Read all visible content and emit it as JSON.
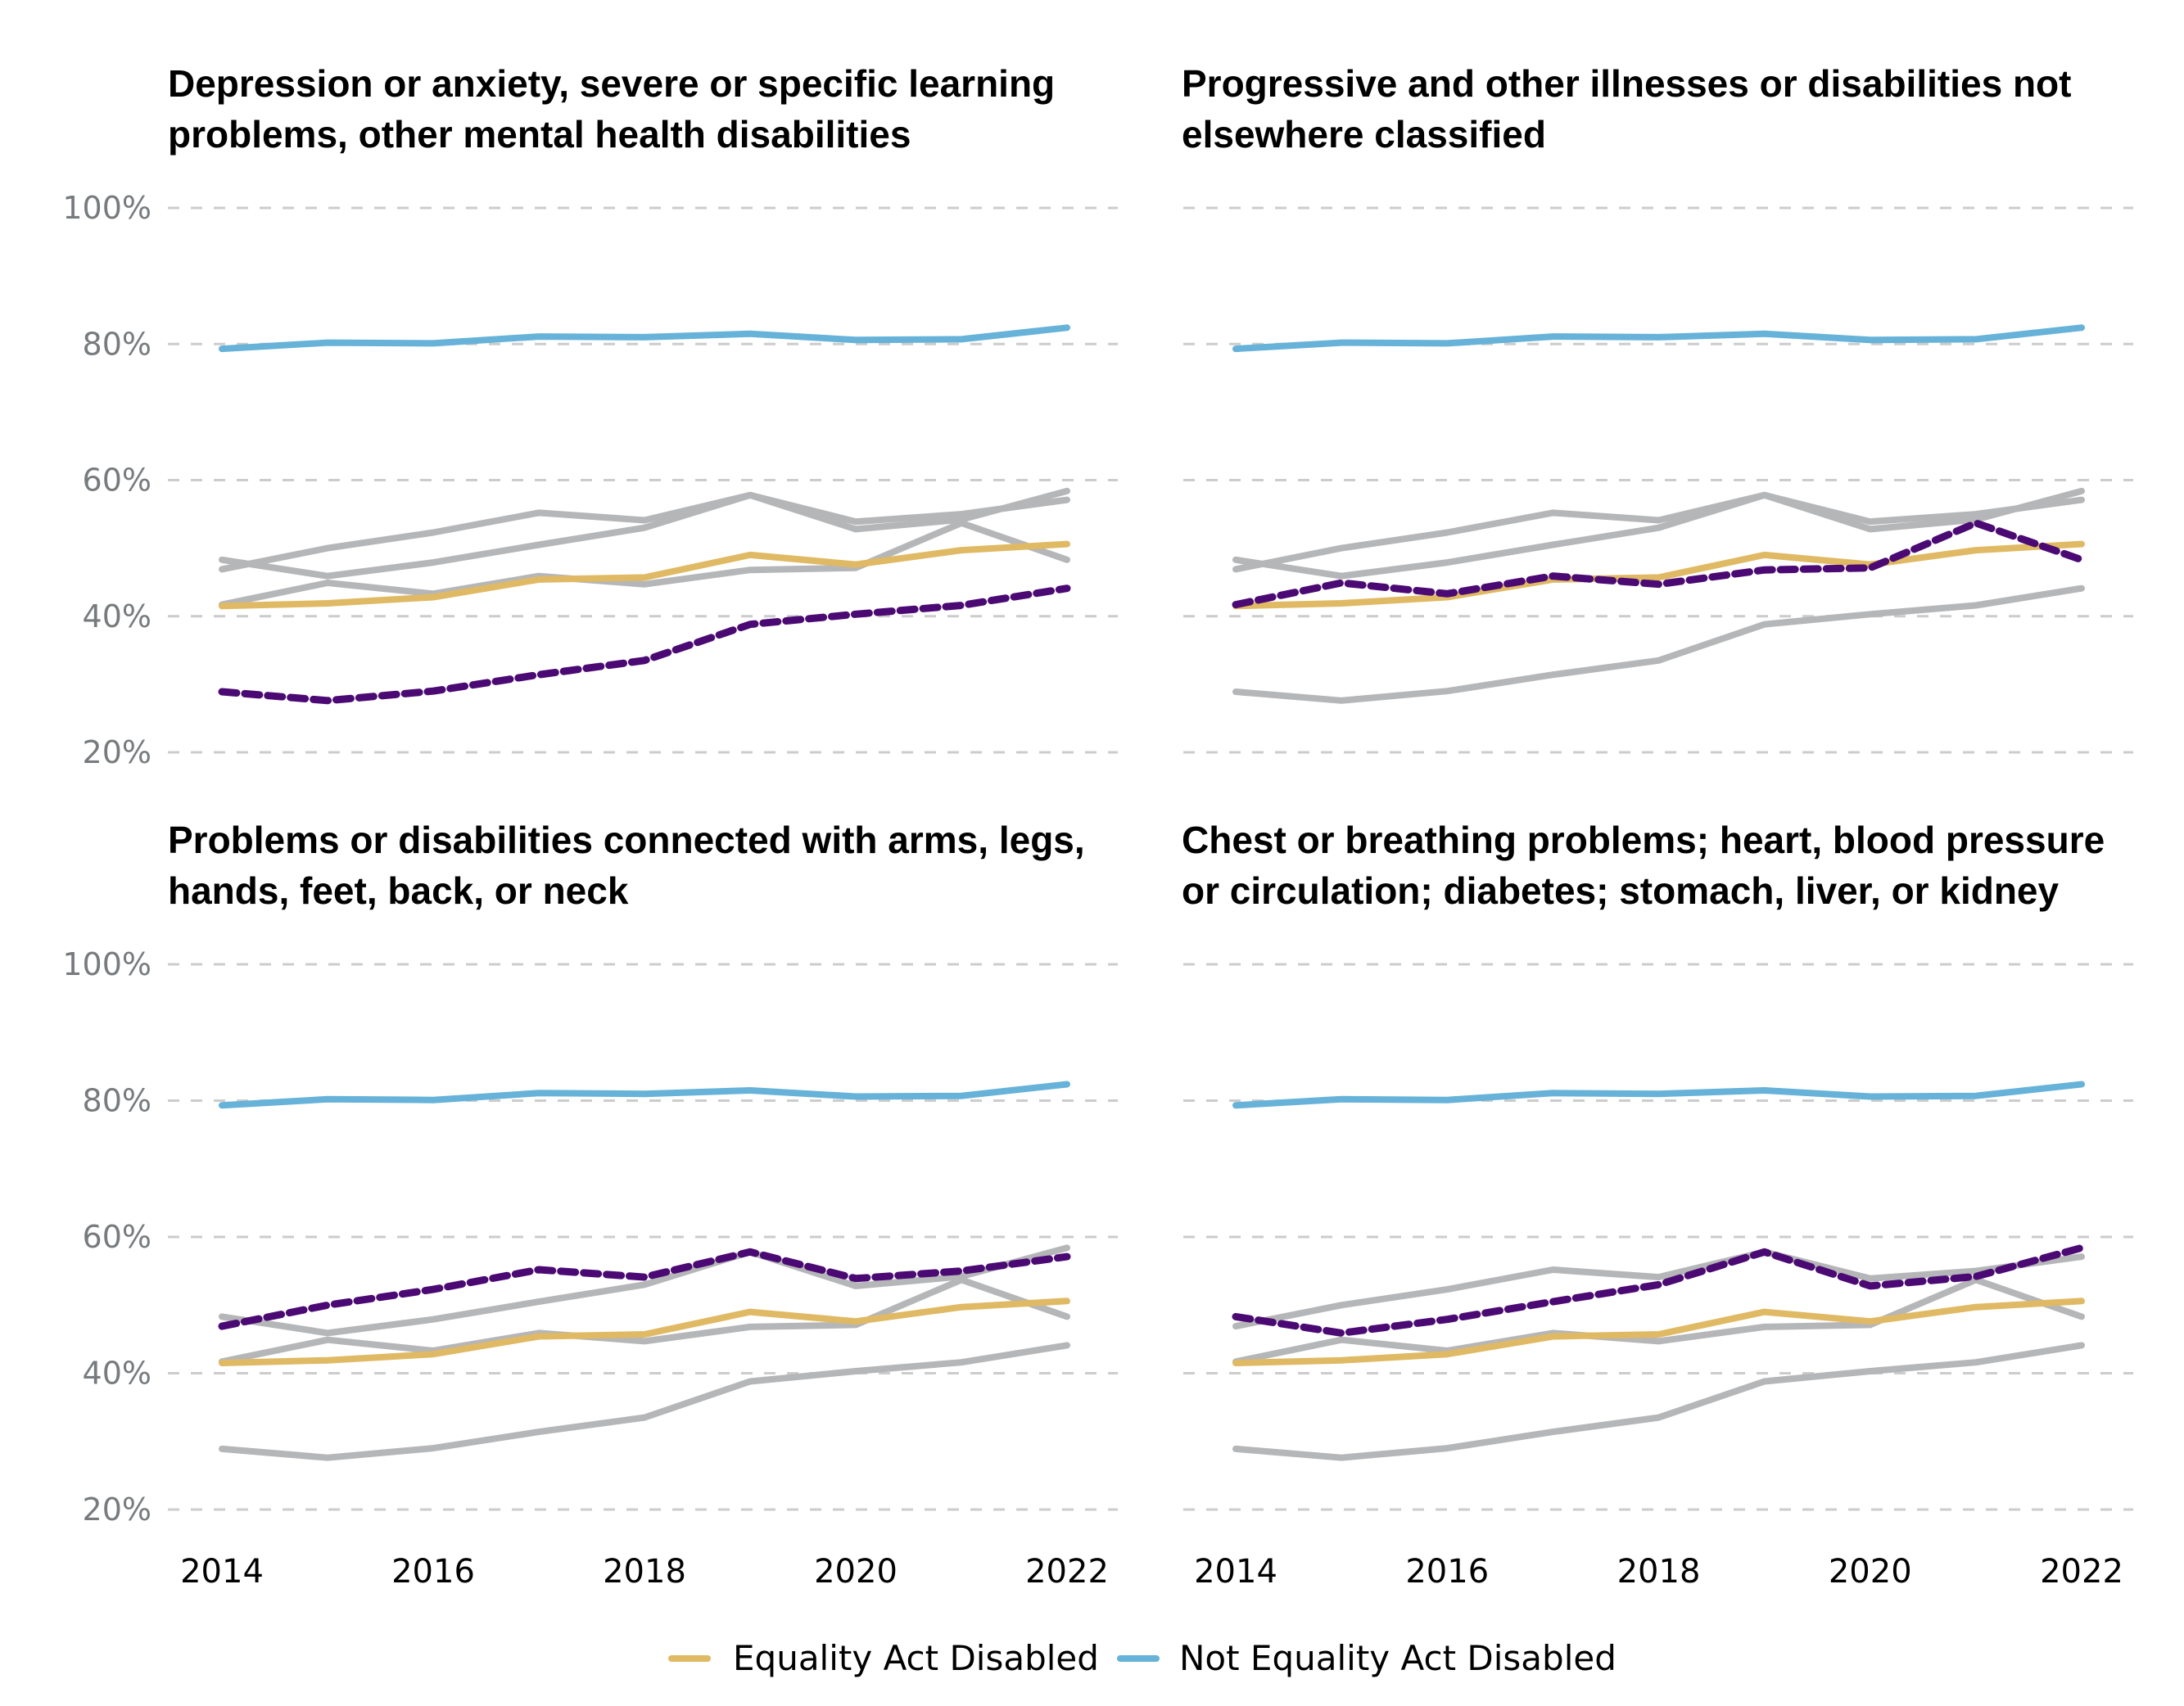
{
  "chart_data": {
    "type": "line",
    "layout": "small-multiples-2x2",
    "x": [
      2014,
      2015,
      2016,
      2017,
      2018,
      2019,
      2020,
      2021,
      2022
    ],
    "xticks": [
      "2014",
      "2016",
      "2018",
      "2020",
      "2022"
    ],
    "yticks": [
      "20%",
      "40%",
      "60%",
      "80%",
      "100%"
    ],
    "ylim": [
      20,
      100
    ],
    "grid": "horizontal dashed",
    "legend_position": "bottom-center",
    "legend": [
      {
        "name": "Equality Act Disabled",
        "color": "#e0b964"
      },
      {
        "name": "Not Equality Act Disabled",
        "color": "#67b2d8"
      }
    ],
    "colors": {
      "equality_act_disabled": "#e0b964",
      "not_equality_act_disabled": "#67b2d8",
      "highlight": "#4b0a73",
      "other_categories": "#b5b6b8",
      "gridline": "#cccccc"
    },
    "series_common": [
      {
        "name": "Not Equality Act Disabled",
        "key": "not_disabled",
        "values": [
          79.3,
          80.2,
          80.1,
          81.1,
          81.0,
          81.5,
          80.6,
          80.7,
          82.4
        ]
      },
      {
        "name": "Equality Act Disabled",
        "key": "disabled",
        "values": [
          41.5,
          41.9,
          42.8,
          45.4,
          45.7,
          49.0,
          47.6,
          49.7,
          50.6
        ]
      }
    ],
    "categories": [
      {
        "key": "depression",
        "values": [
          28.9,
          27.6,
          29.0,
          31.4,
          33.5,
          38.8,
          40.3,
          41.6,
          44.1
        ]
      },
      {
        "key": "progressive",
        "values": [
          41.7,
          44.9,
          43.3,
          45.9,
          44.7,
          46.8,
          47.1,
          53.7,
          48.3
        ]
      },
      {
        "key": "arms",
        "values": [
          46.9,
          50.0,
          52.3,
          55.2,
          54.1,
          57.8,
          53.9,
          55.0,
          57.1
        ]
      },
      {
        "key": "chest",
        "values": [
          48.3,
          45.9,
          47.9,
          50.5,
          53.0,
          57.8,
          52.8,
          54.2,
          58.4
        ]
      }
    ],
    "panels": [
      {
        "title_lines": [
          "Depression or anxiety, severe or specific learning",
          "problems, other mental health disabilities"
        ],
        "highlight": "depression",
        "show_xticks": false
      },
      {
        "title_lines": [
          "Progressive and other illnesses or disabilities not",
          "elsewhere classified"
        ],
        "highlight": "progressive",
        "show_xticks": false
      },
      {
        "title_lines": [
          "Problems or disabilities connected with arms, legs,",
          "hands, feet, back, or neck"
        ],
        "highlight": "arms",
        "show_xticks": true
      },
      {
        "title_lines": [
          "Chest or breathing problems; heart, blood pressure",
          "or circulation; diabetes; stomach, liver, or kidney"
        ],
        "highlight": "chest",
        "show_xticks": true
      }
    ]
  }
}
